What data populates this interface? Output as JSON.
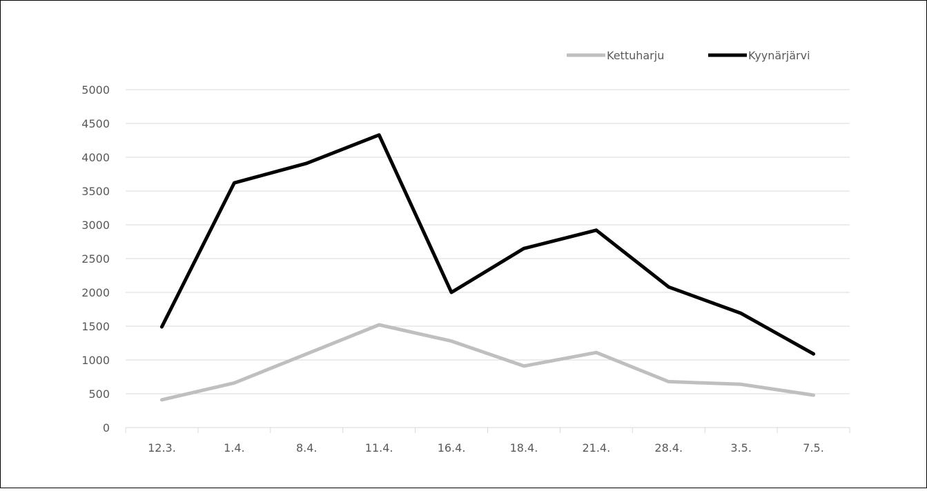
{
  "chart_data": {
    "type": "line",
    "title": "",
    "xlabel": "",
    "ylabel": "",
    "categories": [
      "12.3.",
      "1.4.",
      "8.4.",
      "11.4.",
      "16.4.",
      "18.4.",
      "21.4.",
      "28.4.",
      "3.5.",
      "7.5."
    ],
    "ylim": [
      0,
      5000
    ],
    "yticks": [
      "0",
      "500",
      "1000",
      "1500",
      "2000",
      "2500",
      "3000",
      "3500",
      "4000",
      "4500",
      "5000"
    ],
    "grid": true,
    "legend_position": "top-right",
    "series": [
      {
        "name": "Kettuharju",
        "color": "#bfbfbf",
        "values": [
          410,
          660,
          1090,
          1520,
          1280,
          910,
          1110,
          680,
          640,
          480
        ]
      },
      {
        "name": "Kyynärjärvi",
        "color": "#000000",
        "values": [
          1490,
          3620,
          3910,
          4330,
          2000,
          2650,
          2920,
          2080,
          1690,
          1090
        ]
      }
    ]
  }
}
